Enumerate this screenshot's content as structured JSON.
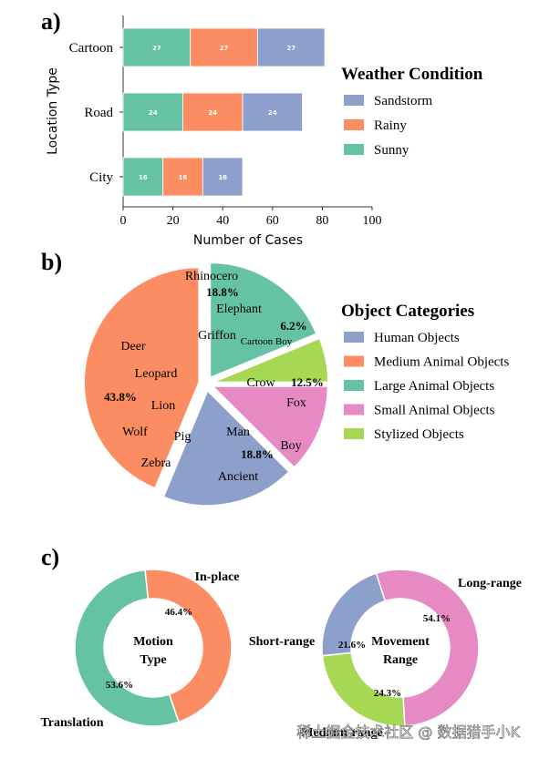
{
  "colors": {
    "sandstorm": "#8DA0CB",
    "rainy": "#FC8D62",
    "sunny": "#66C2A5",
    "human": "#8DA0CB",
    "medium": "#FC8D62",
    "large": "#66C2A5",
    "small": "#E78AC3",
    "stylized": "#A6D854"
  },
  "watermark": "稀土掘金技术社区 @ 数据猎手小K",
  "chart_data": [
    {
      "panel": "a)",
      "type": "bar",
      "orientation": "horizontal",
      "stacked": true,
      "categories": [
        "Cartoon",
        "Road",
        "City"
      ],
      "series": [
        {
          "name": "Sunny",
          "values": [
            27,
            24,
            16
          ],
          "color": "#66C2A5"
        },
        {
          "name": "Rainy",
          "values": [
            27,
            24,
            16
          ],
          "color": "#FC8D62"
        },
        {
          "name": "Sandstorm",
          "values": [
            27,
            24,
            16
          ],
          "color": "#8DA0CB"
        }
      ],
      "xlabel": "Number of Cases",
      "ylabel": "Location Type",
      "xlim": [
        0,
        100
      ],
      "xticks": [
        0,
        20,
        40,
        60,
        80,
        100
      ],
      "legend_title": "Weather Condition",
      "legend_order": [
        "Sandstorm",
        "Rainy",
        "Sunny"
      ],
      "legend_position": "right"
    },
    {
      "panel": "b)",
      "type": "pie",
      "exploded": true,
      "slices": [
        {
          "name": "Medium Animal Objects",
          "value": 43.8,
          "label": "43.8%",
          "color": "#FC8D62",
          "items": [
            "Deer",
            "Leopard",
            "Lion",
            "Wolf",
            "Pig",
            "Zebra"
          ]
        },
        {
          "name": "Large Animal Objects",
          "value": 18.8,
          "label": "18.8%",
          "color": "#66C2A5",
          "items": [
            "Rhinocero",
            "Elephant",
            "Griffon"
          ]
        },
        {
          "name": "Stylized Objects",
          "value": 6.2,
          "label": "6.2%",
          "color": "#A6D854",
          "items": [
            "Cartoon Boy"
          ]
        },
        {
          "name": "Small Animal Objects",
          "value": 12.5,
          "label": "12.5%",
          "color": "#E78AC3",
          "items": [
            "Crow",
            "Fox"
          ]
        },
        {
          "name": "Human Objects",
          "value": 18.8,
          "label": "18.8%",
          "color": "#8DA0CB",
          "items": [
            "Man",
            "Boy",
            "Ancient"
          ]
        }
      ],
      "legend_title": "Object Categories",
      "legend_order": [
        "Human Objects",
        "Medium Animal Objects",
        "Large Animal Objects",
        "Small Animal Objects",
        "Stylized Objects"
      ],
      "legend_position": "right"
    },
    {
      "panel": "c)",
      "type": "pie",
      "donut": true,
      "center_label": [
        "Motion",
        "Type"
      ],
      "slices": [
        {
          "name": "In-place",
          "value": 46.4,
          "label": "46.4%",
          "color": "#FC8D62"
        },
        {
          "name": "Translation",
          "value": 53.6,
          "label": "53.6%",
          "color": "#66C2A5"
        }
      ]
    },
    {
      "panel": "",
      "type": "pie",
      "donut": true,
      "center_label": [
        "Movement",
        "Range"
      ],
      "slices": [
        {
          "name": "Long-range",
          "value": 54.1,
          "label": "54.1%",
          "color": "#E78AC3"
        },
        {
          "name": "Medium-range",
          "value": 24.3,
          "label": "24.3%",
          "color": "#A6D854"
        },
        {
          "name": "Short-range",
          "value": 21.6,
          "label": "21.6%",
          "color": "#8DA0CB"
        }
      ]
    }
  ]
}
